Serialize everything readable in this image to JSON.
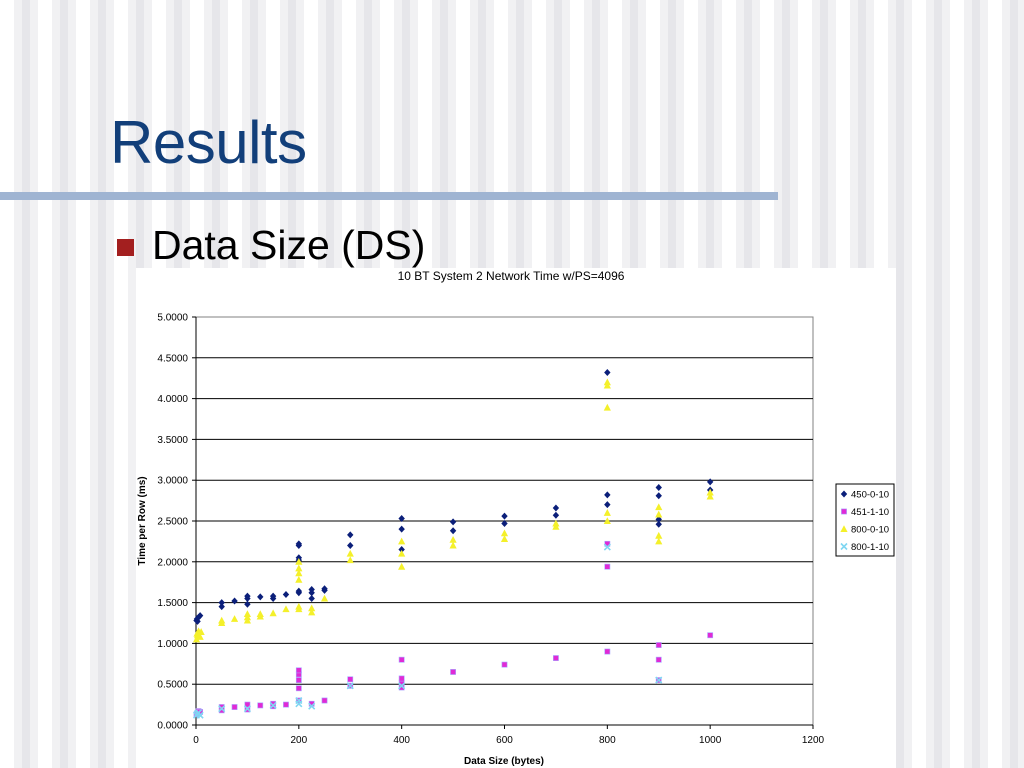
{
  "slide": {
    "title": "Results",
    "bullet": "Data Size (DS)"
  },
  "colors": {
    "title": "#123f7a",
    "rule": "#9fb4d2",
    "bullet": "#a31f1f"
  },
  "chart_data": {
    "type": "scatter",
    "title": "10 BT System 2 Network Time w/PS=4096",
    "xlabel": "Data Size (bytes)",
    "ylabel": "Time per Row (ms)",
    "xlim": [
      0,
      1200
    ],
    "ylim": [
      0,
      5
    ],
    "x_ticks": [
      "0",
      "200",
      "400",
      "600",
      "800",
      "1000",
      "1200"
    ],
    "y_ticks": [
      "0.0000",
      "0.5000",
      "1.0000",
      "1.5000",
      "2.0000",
      "2.5000",
      "3.0000",
      "3.5000",
      "4.0000",
      "4.5000",
      "5.0000"
    ],
    "grid": "horizontal",
    "legend": "right",
    "series": [
      {
        "name": "450-0-10",
        "color": "#0b1f7a",
        "marker": "diamond",
        "points": [
          [
            1,
            1.28
          ],
          [
            2,
            1.3
          ],
          [
            3,
            1.27
          ],
          [
            5,
            1.32
          ],
          [
            8,
            1.34
          ],
          [
            50,
            1.45
          ],
          [
            50,
            1.5
          ],
          [
            75,
            1.52
          ],
          [
            100,
            1.48
          ],
          [
            100,
            1.55
          ],
          [
            100,
            1.58
          ],
          [
            125,
            1.57
          ],
          [
            150,
            1.55
          ],
          [
            150,
            1.58
          ],
          [
            175,
            1.6
          ],
          [
            200,
            1.62
          ],
          [
            200,
            1.64
          ],
          [
            200,
            2.02
          ],
          [
            200,
            2.05
          ],
          [
            200,
            2.2
          ],
          [
            200,
            2.22
          ],
          [
            225,
            1.55
          ],
          [
            225,
            1.62
          ],
          [
            225,
            1.66
          ],
          [
            250,
            1.65
          ],
          [
            250,
            1.67
          ],
          [
            300,
            2.2
          ],
          [
            300,
            2.33
          ],
          [
            400,
            2.15
          ],
          [
            400,
            2.4
          ],
          [
            400,
            2.53
          ],
          [
            500,
            2.38
          ],
          [
            500,
            2.49
          ],
          [
            600,
            2.47
          ],
          [
            600,
            2.56
          ],
          [
            700,
            2.57
          ],
          [
            700,
            2.66
          ],
          [
            800,
            2.7
          ],
          [
            800,
            2.82
          ],
          [
            800,
            4.32
          ],
          [
            900,
            2.46
          ],
          [
            900,
            2.52
          ],
          [
            900,
            2.81
          ],
          [
            900,
            2.91
          ],
          [
            1000,
            2.88
          ],
          [
            1000,
            2.98
          ]
        ]
      },
      {
        "name": "451-1-10",
        "color": "#e02ad6",
        "marker": "square",
        "points": [
          [
            1,
            0.13
          ],
          [
            3,
            0.15
          ],
          [
            5,
            0.17
          ],
          [
            8,
            0.16
          ],
          [
            50,
            0.18
          ],
          [
            50,
            0.22
          ],
          [
            75,
            0.22
          ],
          [
            100,
            0.19
          ],
          [
            100,
            0.25
          ],
          [
            125,
            0.24
          ],
          [
            150,
            0.23
          ],
          [
            150,
            0.26
          ],
          [
            175,
            0.25
          ],
          [
            200,
            0.3
          ],
          [
            200,
            0.45
          ],
          [
            200,
            0.55
          ],
          [
            200,
            0.62
          ],
          [
            200,
            0.67
          ],
          [
            225,
            0.26
          ],
          [
            250,
            0.3
          ],
          [
            300,
            0.48
          ],
          [
            300,
            0.56
          ],
          [
            400,
            0.46
          ],
          [
            400,
            0.52
          ],
          [
            400,
            0.57
          ],
          [
            400,
            0.8
          ],
          [
            500,
            0.65
          ],
          [
            600,
            0.74
          ],
          [
            700,
            0.82
          ],
          [
            800,
            0.9
          ],
          [
            800,
            1.94
          ],
          [
            800,
            2.22
          ],
          [
            900,
            0.55
          ],
          [
            900,
            0.8
          ],
          [
            900,
            0.98
          ],
          [
            1000,
            1.1
          ]
        ]
      },
      {
        "name": "800-0-10",
        "color": "#f4f02a",
        "marker": "triangle",
        "points": [
          [
            1,
            1.05
          ],
          [
            2,
            1.12
          ],
          [
            3,
            1.1
          ],
          [
            5,
            1.15
          ],
          [
            8,
            1.08
          ],
          [
            10,
            1.14
          ],
          [
            50,
            1.25
          ],
          [
            50,
            1.28
          ],
          [
            75,
            1.3
          ],
          [
            100,
            1.28
          ],
          [
            100,
            1.32
          ],
          [
            100,
            1.36
          ],
          [
            125,
            1.33
          ],
          [
            125,
            1.36
          ],
          [
            150,
            1.37
          ],
          [
            175,
            1.42
          ],
          [
            200,
            1.42
          ],
          [
            200,
            1.45
          ],
          [
            200,
            1.78
          ],
          [
            200,
            1.86
          ],
          [
            200,
            1.92
          ],
          [
            200,
            2.0
          ],
          [
            225,
            1.38
          ],
          [
            225,
            1.43
          ],
          [
            250,
            1.55
          ],
          [
            300,
            2.02
          ],
          [
            300,
            2.1
          ],
          [
            400,
            1.94
          ],
          [
            400,
            2.1
          ],
          [
            400,
            2.25
          ],
          [
            500,
            2.2
          ],
          [
            500,
            2.27
          ],
          [
            600,
            2.28
          ],
          [
            600,
            2.35
          ],
          [
            700,
            2.43
          ],
          [
            700,
            2.47
          ],
          [
            800,
            2.5
          ],
          [
            800,
            2.6
          ],
          [
            800,
            3.89
          ],
          [
            800,
            4.16
          ],
          [
            800,
            4.2
          ],
          [
            900,
            2.25
          ],
          [
            900,
            2.32
          ],
          [
            900,
            2.58
          ],
          [
            900,
            2.67
          ],
          [
            1000,
            2.8
          ],
          [
            1000,
            2.85
          ]
        ]
      },
      {
        "name": "800-1-10",
        "color": "#7fd6f2",
        "marker": "x",
        "points": [
          [
            1,
            0.12
          ],
          [
            3,
            0.14
          ],
          [
            5,
            0.15
          ],
          [
            8,
            0.12
          ],
          [
            50,
            0.2
          ],
          [
            100,
            0.2
          ],
          [
            150,
            0.24
          ],
          [
            200,
            0.26
          ],
          [
            200,
            0.3
          ],
          [
            225,
            0.23
          ],
          [
            300,
            0.48
          ],
          [
            400,
            0.48
          ],
          [
            800,
            2.18
          ],
          [
            900,
            0.55
          ]
        ]
      }
    ]
  }
}
